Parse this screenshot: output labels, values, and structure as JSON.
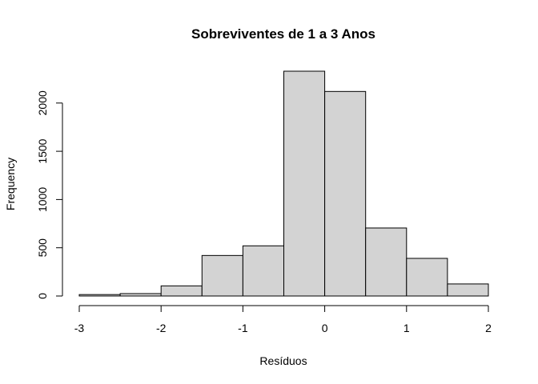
{
  "chart_data": {
    "type": "bar",
    "title": "Sobreviventes de 1 a 3 Anos",
    "xlabel": "Resíduos",
    "ylabel": "Frequency",
    "bins": [
      {
        "start": -3.0,
        "end": -2.5,
        "count": 15
      },
      {
        "start": -2.5,
        "end": -2.0,
        "count": 25
      },
      {
        "start": -2.0,
        "end": -1.5,
        "count": 105
      },
      {
        "start": -1.5,
        "end": -1.0,
        "count": 420
      },
      {
        "start": -1.0,
        "end": -0.5,
        "count": 520
      },
      {
        "start": -0.5,
        "end": 0.0,
        "count": 2330
      },
      {
        "start": 0.0,
        "end": 0.5,
        "count": 2120
      },
      {
        "start": 0.5,
        "end": 1.0,
        "count": 705
      },
      {
        "start": 1.0,
        "end": 1.5,
        "count": 390
      },
      {
        "start": 1.5,
        "end": 2.0,
        "count": 125
      }
    ],
    "x_ticks": [
      -3,
      -2,
      -1,
      0,
      1,
      2
    ],
    "x_tick_labels": [
      "-3",
      "-2",
      "-1",
      "0",
      "1",
      "2"
    ],
    "y_ticks": [
      0,
      500,
      1000,
      1500,
      2000
    ],
    "y_tick_labels": [
      "0",
      "500",
      "1000",
      "1500",
      "2000"
    ],
    "xlim": [
      -3,
      2
    ],
    "ylim": [
      0,
      2330
    ],
    "grid": false,
    "colors": {
      "bar_fill": "#d3d3d3",
      "bar_stroke": "#000000",
      "axis": "#000000"
    }
  }
}
